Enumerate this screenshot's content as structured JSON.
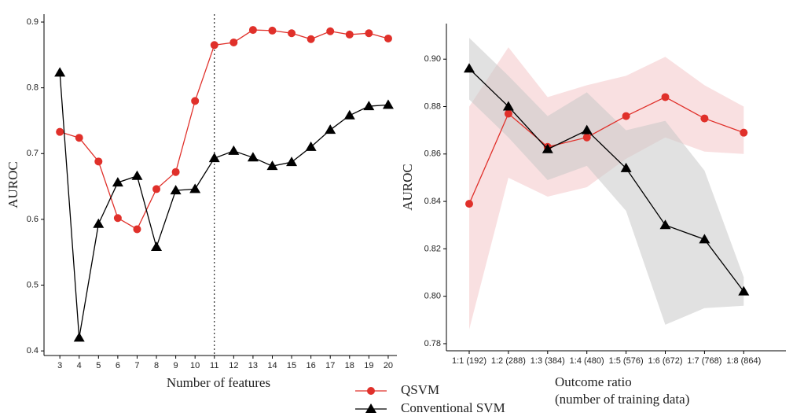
{
  "chart_data": [
    {
      "type": "line",
      "x_label": "Number of features",
      "y_label": "AUROC",
      "x": [
        3,
        4,
        5,
        6,
        7,
        8,
        9,
        10,
        11,
        12,
        13,
        14,
        15,
        16,
        17,
        18,
        19,
        20
      ],
      "xlim": [
        2.18,
        20.45
      ],
      "xticks": [
        3,
        4,
        5,
        6,
        7,
        8,
        9,
        10,
        11,
        12,
        13,
        14,
        15,
        16,
        17,
        18,
        19,
        20
      ],
      "ylim": [
        0.393,
        0.912
      ],
      "yticks": [
        0.4,
        0.5,
        0.6,
        0.7,
        0.8,
        0.9
      ],
      "vline": 11,
      "series": [
        {
          "name": "QSVM",
          "color": "#e0302a",
          "marker": "circle",
          "values": [
            0.733,
            0.724,
            0.688,
            0.602,
            0.585,
            0.646,
            0.672,
            0.78,
            0.865,
            0.869,
            0.888,
            0.887,
            0.883,
            0.874,
            0.886,
            0.881,
            0.883,
            0.875
          ]
        },
        {
          "name": "Conventional SVM",
          "color": "#000000",
          "marker": "triangle",
          "values": [
            0.823,
            0.42,
            0.593,
            0.656,
            0.666,
            0.558,
            0.644,
            0.646,
            0.693,
            0.704,
            0.694,
            0.681,
            0.687,
            0.71,
            0.736,
            0.758,
            0.772,
            0.774
          ]
        }
      ]
    },
    {
      "type": "band-line",
      "x_label": [
        "Outcome ratio",
        "(number of training data)"
      ],
      "y_label": "AUROC",
      "categories": [
        "1:1 (192)",
        "1:2 (288)",
        "1:3 (384)",
        "1:4 (480)",
        "1:5 (576)",
        "1:6 (672)",
        "1:7 (768)",
        "1:8 (864)"
      ],
      "ylim": [
        0.777,
        0.915
      ],
      "yticks": [
        0.78,
        {
          "value": 0.8,
          "label": "0.80"
        },
        0.82,
        0.84,
        0.86,
        0.88,
        {
          "value": 0.9,
          "label": "0.90"
        }
      ],
      "series": [
        {
          "color": "#e0302a",
          "band_color": "#f4c6c8",
          "marker": "circle",
          "values": [
            0.839,
            0.877,
            0.863,
            0.867,
            0.876,
            0.884,
            0.875,
            0.869
          ],
          "lower": [
            0.786,
            0.85,
            0.842,
            0.846,
            0.858,
            0.867,
            0.861,
            0.86
          ],
          "upper": [
            0.88,
            0.905,
            0.884,
            0.889,
            0.893,
            0.901,
            0.889,
            0.88
          ]
        },
        {
          "color": "#000000",
          "band_color": "#c8c8c8",
          "marker": "triangle",
          "values": [
            0.896,
            0.88,
            0.862,
            0.87,
            0.854,
            0.83,
            0.824,
            0.802
          ],
          "lower": [
            0.883,
            0.867,
            0.849,
            0.855,
            0.836,
            0.788,
            0.795,
            0.796
          ],
          "upper": [
            0.909,
            0.893,
            0.876,
            0.886,
            0.87,
            0.874,
            0.853,
            0.808
          ]
        }
      ]
    }
  ]
}
